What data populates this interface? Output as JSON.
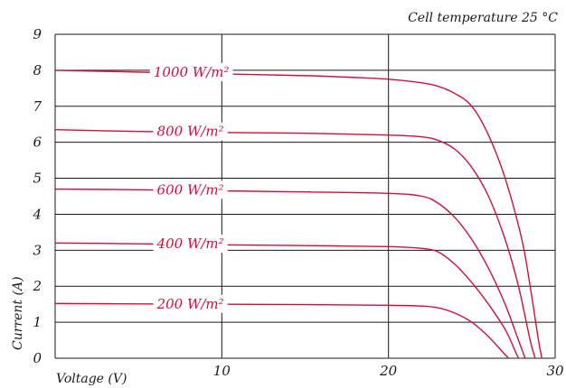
{
  "chart_data": {
    "type": "line",
    "annotation": "Cell temperature 25 °C",
    "xlabel": "Voltage (V)",
    "ylabel": "Current (A)",
    "xlim": [
      0,
      30
    ],
    "ylim": [
      0,
      9
    ],
    "x_ticks": [
      "0",
      "10",
      "20",
      "30"
    ],
    "y_ticks": [
      "0",
      "1",
      "2",
      "3",
      "4",
      "5",
      "6",
      "7",
      "8",
      "9"
    ],
    "grid": true,
    "line_color": "#d0103a",
    "series": [
      {
        "label": "1000 W/m²",
        "label_x": 2.0,
        "points": [
          [
            0,
            8.0
          ],
          [
            5,
            7.95
          ],
          [
            10,
            7.9
          ],
          [
            15,
            7.85
          ],
          [
            18,
            7.8
          ],
          [
            20,
            7.75
          ],
          [
            22,
            7.65
          ],
          [
            23,
            7.55
          ],
          [
            24,
            7.35
          ],
          [
            25,
            7.0
          ],
          [
            26,
            6.2
          ],
          [
            27,
            5.0
          ],
          [
            28,
            3.3
          ],
          [
            28.5,
            2.0
          ],
          [
            29,
            0.5
          ],
          [
            29.2,
            0
          ]
        ]
      },
      {
        "label": "800 W/m²",
        "label_x": 2.2,
        "points": [
          [
            0,
            6.35
          ],
          [
            5,
            6.3
          ],
          [
            10,
            6.27
          ],
          [
            15,
            6.25
          ],
          [
            20,
            6.2
          ],
          [
            22,
            6.15
          ],
          [
            23,
            6.05
          ],
          [
            24,
            5.8
          ],
          [
            25,
            5.3
          ],
          [
            26,
            4.5
          ],
          [
            27,
            3.3
          ],
          [
            27.8,
            2.0
          ],
          [
            28.5,
            0.5
          ],
          [
            28.8,
            0
          ]
        ]
      },
      {
        "label": "600 W/m²",
        "label_x": 2.2,
        "points": [
          [
            0,
            4.7
          ],
          [
            5,
            4.68
          ],
          [
            10,
            4.65
          ],
          [
            15,
            4.62
          ],
          [
            20,
            4.58
          ],
          [
            22,
            4.5
          ],
          [
            23,
            4.3
          ],
          [
            24,
            3.9
          ],
          [
            25,
            3.3
          ],
          [
            26,
            2.5
          ],
          [
            27,
            1.5
          ],
          [
            27.8,
            0.5
          ],
          [
            28.2,
            0
          ]
        ]
      },
      {
        "label": "400 W/m²",
        "label_x": 2.2,
        "points": [
          [
            0,
            3.2
          ],
          [
            5,
            3.18
          ],
          [
            10,
            3.15
          ],
          [
            15,
            3.13
          ],
          [
            20,
            3.1
          ],
          [
            22,
            3.05
          ],
          [
            23,
            2.95
          ],
          [
            24,
            2.6
          ],
          [
            25,
            2.1
          ],
          [
            26,
            1.5
          ],
          [
            27,
            0.8
          ],
          [
            27.6,
            0.2
          ],
          [
            27.8,
            0
          ]
        ]
      },
      {
        "label": "200 W/m²",
        "label_x": 2.2,
        "points": [
          [
            0,
            1.52
          ],
          [
            5,
            1.51
          ],
          [
            10,
            1.5
          ],
          [
            15,
            1.49
          ],
          [
            20,
            1.47
          ],
          [
            22,
            1.45
          ],
          [
            23,
            1.4
          ],
          [
            24,
            1.25
          ],
          [
            25,
            1.0
          ],
          [
            26,
            0.6
          ],
          [
            26.8,
            0.2
          ],
          [
            27.2,
            0
          ]
        ]
      }
    ]
  }
}
